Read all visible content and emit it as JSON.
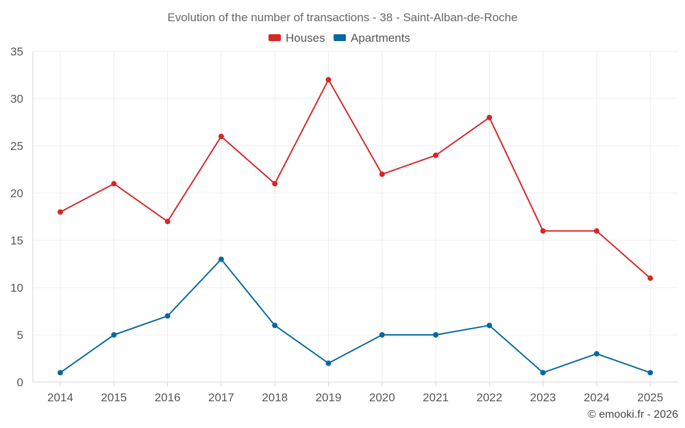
{
  "chart_data": {
    "type": "line",
    "title": "Evolution of the number of transactions - 38 - Saint-Alban-de-Roche",
    "xlabel": "",
    "ylabel": "",
    "categories": [
      "2014",
      "2015",
      "2016",
      "2017",
      "2018",
      "2019",
      "2020",
      "2021",
      "2022",
      "2023",
      "2024",
      "2025"
    ],
    "ylim": [
      0,
      35
    ],
    "yticks": [
      0,
      5,
      10,
      15,
      20,
      25,
      30,
      35
    ],
    "grid": true,
    "legend_position": "top-center",
    "series": [
      {
        "name": "Houses",
        "color": "#d62728",
        "values": [
          18,
          21,
          17,
          26,
          21,
          32,
          22,
          24,
          28,
          16,
          16,
          11
        ]
      },
      {
        "name": "Apartments",
        "color": "#0868a0",
        "values": [
          1,
          5,
          7,
          13,
          6,
          2,
          5,
          5,
          6,
          1,
          3,
          1
        ]
      }
    ]
  },
  "credit": "© emooki.fr - 2026"
}
